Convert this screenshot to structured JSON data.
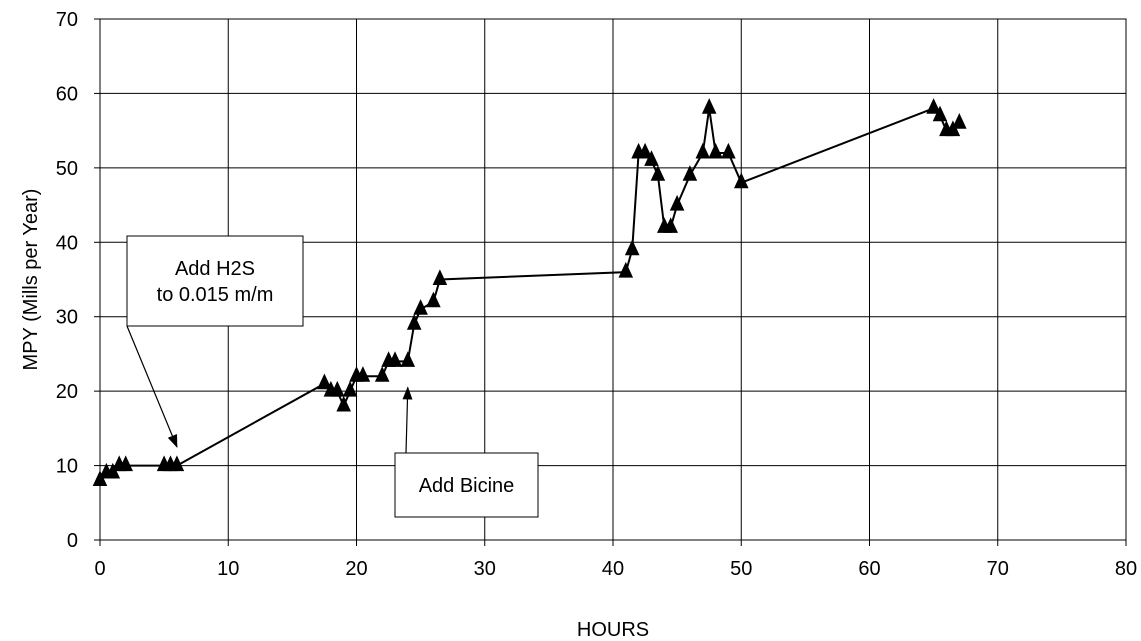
{
  "chart_data": {
    "type": "line",
    "title": "",
    "xlabel": "HOURS",
    "ylabel": "MPY (Mills per Year)",
    "xlim": [
      0,
      80
    ],
    "ylim": [
      0,
      70
    ],
    "x_ticks": [
      0,
      10,
      20,
      30,
      40,
      50,
      60,
      70,
      80
    ],
    "y_ticks": [
      0,
      10,
      20,
      30,
      40,
      50,
      60,
      70
    ],
    "x_tick_labels": [
      "0",
      "10",
      "20",
      "30",
      "40",
      "50",
      "60",
      "70",
      "80"
    ],
    "y_tick_labels": [
      "0",
      "10",
      "20",
      "30",
      "40",
      "50",
      "60",
      "70"
    ],
    "grid": true,
    "legend": "none",
    "marker": "triangle",
    "series": [
      {
        "x": [
          0,
          0.5,
          1,
          1.5,
          2,
          5,
          5.5,
          6,
          17.5,
          18,
          18.5,
          19,
          19.5,
          20,
          20.5,
          22,
          22.5,
          23,
          24,
          24.5,
          25,
          26,
          26.5,
          41,
          41.5,
          42,
          42.5,
          43,
          43.5,
          44,
          44.5,
          45,
          46,
          47,
          47.5,
          48,
          49,
          50,
          65,
          65.5,
          66,
          66.5,
          67
        ],
        "y": [
          8,
          9,
          9,
          10,
          10,
          10,
          10,
          10,
          21,
          20,
          20,
          18,
          20,
          22,
          22,
          22,
          24,
          24,
          24,
          29,
          31,
          32,
          35,
          36,
          39,
          52,
          52,
          51,
          49,
          42,
          42,
          45,
          49,
          52,
          58,
          52,
          52,
          48,
          58,
          57,
          55,
          55,
          56
        ]
      }
    ],
    "annotations": [
      {
        "lines": [
          "Add H2S",
          "to 0.015 m/m"
        ],
        "arrow_to": [
          6,
          12.5
        ]
      },
      {
        "lines": [
          "Add Bicine"
        ],
        "arrow_to": [
          24,
          20.5
        ]
      }
    ]
  }
}
